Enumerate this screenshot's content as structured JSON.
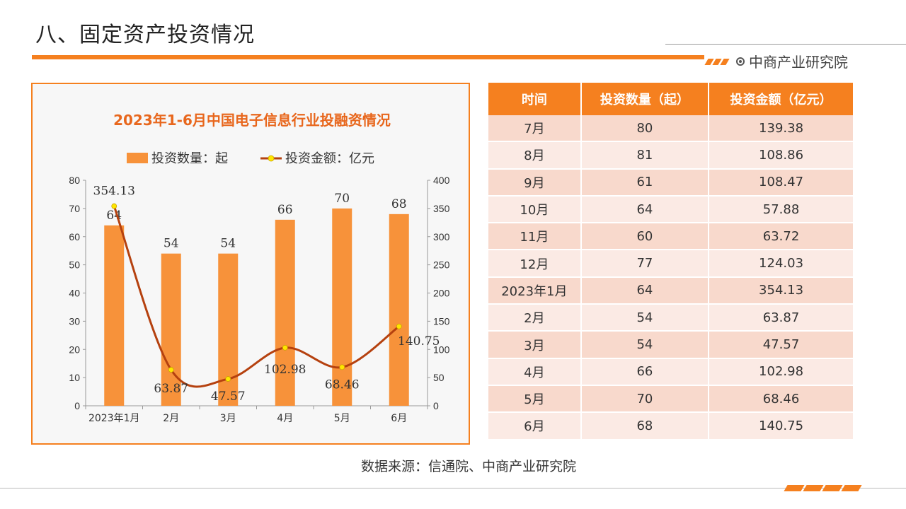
{
  "page": {
    "title": "八、固定资产投资情况",
    "brand": "中商产业研究院",
    "source": "数据来源：信通院、中商产业研究院"
  },
  "colors": {
    "accent": "#f5801f",
    "bar": "#f7923a",
    "line": "#b5410f",
    "marker": "#ffe600",
    "table_row_odd": "#f8d9cc",
    "table_row_even": "#fbeae4"
  },
  "icons": {
    "brand": "target-circle-icon"
  },
  "chart_data": {
    "type": "bar",
    "title": "2023年1-6月中国电子信息行业投融资情况",
    "categories": [
      "2023年1月",
      "2月",
      "3月",
      "4月",
      "5月",
      "6月"
    ],
    "series": [
      {
        "name": "投资数量：起",
        "kind": "bar",
        "axis": "left",
        "values": [
          64,
          54,
          54,
          66,
          70,
          68
        ]
      },
      {
        "name": "投资金额：亿元",
        "kind": "line",
        "axis": "right",
        "values": [
          354.13,
          63.87,
          47.57,
          102.98,
          68.46,
          140.75
        ]
      }
    ],
    "ylim_left": [
      0,
      80
    ],
    "yticks_left": [
      0,
      10,
      20,
      30,
      40,
      50,
      60,
      70,
      80
    ],
    "ylim_right": [
      0,
      400
    ],
    "yticks_right": [
      0,
      50,
      100,
      150,
      200,
      250,
      300,
      350,
      400
    ],
    "legend": "top",
    "grid": false
  },
  "table": {
    "headers": [
      "时间",
      "投资数量（起）",
      "投资金额（亿元）"
    ],
    "rows": [
      [
        "7月",
        "80",
        "139.38"
      ],
      [
        "8月",
        "81",
        "108.86"
      ],
      [
        "9月",
        "61",
        "108.47"
      ],
      [
        "10月",
        "64",
        "57.88"
      ],
      [
        "11月",
        "60",
        "63.72"
      ],
      [
        "12月",
        "77",
        "124.03"
      ],
      [
        "2023年1月",
        "64",
        "354.13"
      ],
      [
        "2月",
        "54",
        "63.87"
      ],
      [
        "3月",
        "54",
        "47.57"
      ],
      [
        "4月",
        "66",
        "102.98"
      ],
      [
        "5月",
        "70",
        "68.46"
      ],
      [
        "6月",
        "68",
        "140.75"
      ]
    ]
  }
}
